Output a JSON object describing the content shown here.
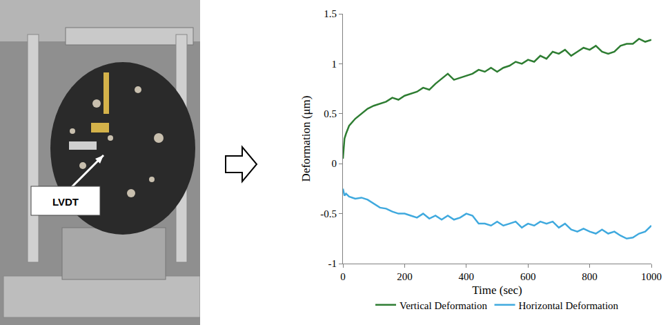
{
  "chart_data": {
    "type": "line",
    "x_label": "Time (sec)",
    "y_label": "Deformation (μm)",
    "x": [
      0,
      5,
      10,
      20,
      40,
      60,
      80,
      100,
      120,
      140,
      160,
      180,
      200,
      220,
      240,
      260,
      280,
      300,
      320,
      340,
      360,
      380,
      400,
      420,
      440,
      460,
      480,
      500,
      520,
      540,
      560,
      580,
      600,
      620,
      640,
      660,
      680,
      700,
      720,
      740,
      760,
      780,
      800,
      820,
      840,
      860,
      880,
      900,
      920,
      940,
      960,
      980,
      1000
    ],
    "series": [
      {
        "name": "Vertical Deformation",
        "color": "#2e7d32",
        "values": [
          0.05,
          0.25,
          0.3,
          0.38,
          0.45,
          0.5,
          0.55,
          0.58,
          0.6,
          0.62,
          0.66,
          0.64,
          0.68,
          0.7,
          0.72,
          0.76,
          0.74,
          0.8,
          0.85,
          0.9,
          0.84,
          0.86,
          0.88,
          0.9,
          0.94,
          0.92,
          0.96,
          0.92,
          0.96,
          0.98,
          1.02,
          1.0,
          1.04,
          1.02,
          1.08,
          1.05,
          1.12,
          1.1,
          1.14,
          1.08,
          1.12,
          1.16,
          1.14,
          1.18,
          1.12,
          1.1,
          1.12,
          1.18,
          1.2,
          1.2,
          1.25,
          1.22,
          1.24
        ]
      },
      {
        "name": "Horizontal Deformation",
        "color": "#3fa9de",
        "values": [
          -0.25,
          -0.32,
          -0.3,
          -0.33,
          -0.35,
          -0.34,
          -0.36,
          -0.4,
          -0.44,
          -0.45,
          -0.48,
          -0.5,
          -0.5,
          -0.52,
          -0.54,
          -0.5,
          -0.55,
          -0.52,
          -0.56,
          -0.52,
          -0.56,
          -0.54,
          -0.5,
          -0.52,
          -0.6,
          -0.6,
          -0.62,
          -0.58,
          -0.62,
          -0.6,
          -0.58,
          -0.64,
          -0.6,
          -0.62,
          -0.58,
          -0.6,
          -0.58,
          -0.64,
          -0.6,
          -0.66,
          -0.68,
          -0.65,
          -0.68,
          -0.7,
          -0.66,
          -0.7,
          -0.68,
          -0.72,
          -0.75,
          -0.74,
          -0.7,
          -0.68,
          -0.62
        ]
      }
    ],
    "xlim": [
      0,
      1000
    ],
    "xticks": [
      0,
      200,
      400,
      600,
      800,
      1000
    ],
    "ylim": [
      -1,
      1.5
    ],
    "yticks": [
      -1,
      -0.5,
      0,
      0.5,
      1,
      1.5
    ],
    "grid": false,
    "legend": "bottom"
  },
  "photo": {
    "label": "LVDT"
  }
}
